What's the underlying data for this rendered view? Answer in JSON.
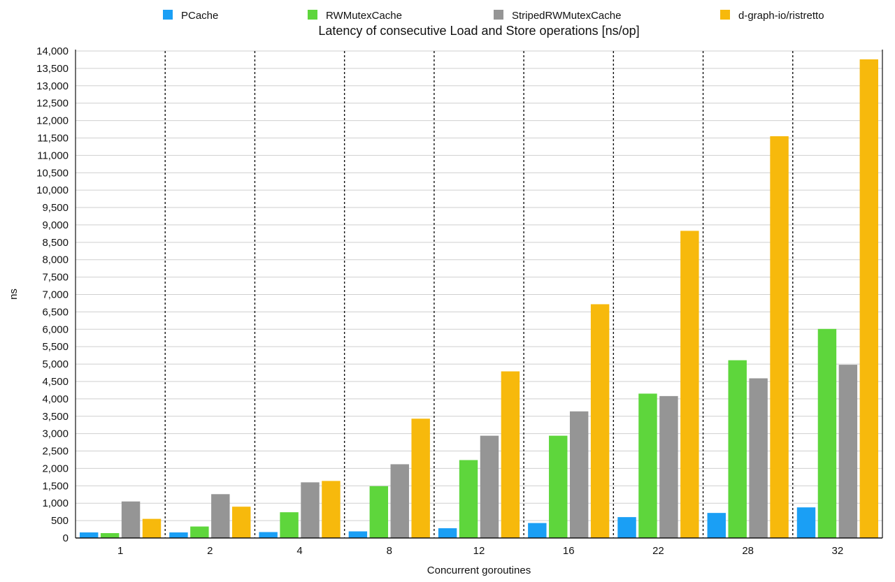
{
  "chart_data": {
    "type": "bar",
    "title": "Latency of consecutive Load and Store operations [ns/op]",
    "xlabel": "Concurrent goroutines",
    "ylabel": "ns",
    "ylim": [
      0,
      14000
    ],
    "ytick_step": 500,
    "grid": true,
    "legend_position": "top",
    "categories": [
      "1",
      "2",
      "4",
      "8",
      "12",
      "16",
      "22",
      "28",
      "32"
    ],
    "series": [
      {
        "name": "PCache",
        "color": "#1a9ff5",
        "values": [
          160,
          160,
          170,
          190,
          280,
          430,
          600,
          720,
          880
        ]
      },
      {
        "name": "RWMutexCache",
        "color": "#5ed63c",
        "values": [
          140,
          330,
          740,
          1490,
          2240,
          2940,
          4150,
          5110,
          6010
        ]
      },
      {
        "name": "StripedRWMutexCache",
        "color": "#959595",
        "values": [
          1050,
          1260,
          1600,
          2120,
          2940,
          3640,
          4080,
          4590,
          4980
        ]
      },
      {
        "name": "d-graph-io/ristretto",
        "color": "#f7b90c",
        "values": [
          550,
          900,
          1640,
          3430,
          4790,
          6720,
          8830,
          11550,
          13760
        ]
      }
    ]
  }
}
